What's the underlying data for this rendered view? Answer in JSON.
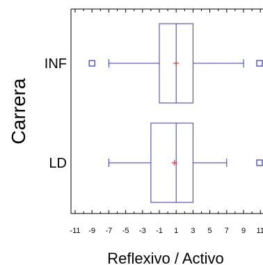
{
  "chart_data": {
    "type": "boxplot",
    "orientation": "horizontal",
    "title": "",
    "xlabel": "Reflexivo / Activo",
    "ylabel": "Carrera",
    "xlim": [
      -12,
      12
    ],
    "xticks": [
      -11,
      -9,
      -7,
      -5,
      -3,
      -1,
      1,
      3,
      5,
      7,
      9,
      11
    ],
    "xtick_labels": [
      "-11",
      "-9",
      "-7",
      "-5",
      "-3",
      "-1",
      "1",
      "3",
      "5",
      "7",
      "9",
      "11"
    ],
    "grid": false,
    "categories": [
      "INF",
      "LD"
    ],
    "boxes": [
      {
        "category": "INF",
        "whisker_low": -7,
        "q1": -1,
        "median": 1,
        "q3": 3,
        "whisker_high": 9,
        "mean": 1,
        "outliers": [
          -9,
          11
        ]
      },
      {
        "category": "LD",
        "whisker_low": -7,
        "q1": -2,
        "median": 1,
        "q3": 3,
        "whisker_high": 7,
        "mean": 0.8,
        "outliers": [
          11
        ]
      }
    ],
    "colors": {
      "box": "#3333cc",
      "mean": "#e03030",
      "frame": "#000000"
    }
  }
}
